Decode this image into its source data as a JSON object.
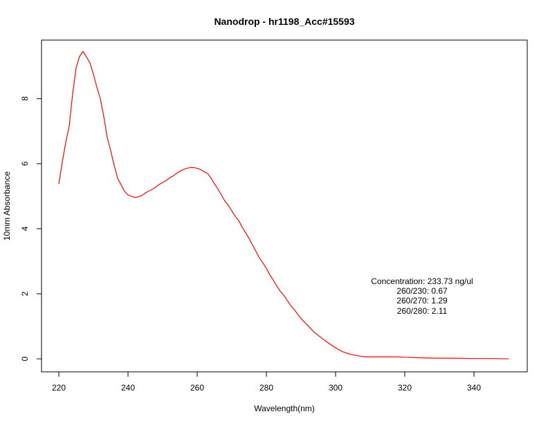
{
  "chart_data": {
    "type": "line",
    "title": "Nanodrop - hr1198_Acc#15593",
    "xlabel": "Wavelength(nm)",
    "ylabel": "10mm Absorbance",
    "xlim": [
      220,
      350
    ],
    "ylim": [
      -0.4,
      9.8
    ],
    "xticks": [
      220,
      240,
      260,
      280,
      300,
      320,
      340
    ],
    "yticks": [
      0,
      2,
      4,
      6,
      8
    ],
    "grid": false,
    "series": [
      {
        "color": "#ff0000",
        "x": [
          220,
          221,
          222,
          223,
          224,
          225,
          226,
          227,
          228,
          229,
          230,
          231,
          232,
          233,
          234,
          235,
          236,
          237,
          238,
          239,
          240,
          241,
          242,
          243,
          244,
          245,
          246,
          247,
          248,
          249,
          250,
          251,
          252,
          253,
          254,
          255,
          256,
          257,
          258,
          259,
          260,
          261,
          262,
          263,
          264,
          265,
          266,
          267,
          268,
          269,
          270,
          271,
          272,
          273,
          274,
          275,
          276,
          277,
          278,
          279,
          280,
          281,
          282,
          283,
          284,
          285,
          286,
          287,
          288,
          289,
          290,
          292,
          294,
          296,
          298,
          300,
          302,
          304,
          306,
          308,
          310,
          312,
          314,
          316,
          318,
          320,
          325,
          330,
          335,
          340,
          345,
          350
        ],
        "y": [
          5.38,
          6.05,
          6.65,
          7.15,
          8.15,
          8.95,
          9.3,
          9.45,
          9.28,
          9.1,
          8.75,
          8.35,
          8.0,
          7.45,
          6.8,
          6.4,
          5.95,
          5.55,
          5.35,
          5.15,
          5.04,
          5.0,
          4.96,
          4.98,
          5.02,
          5.1,
          5.16,
          5.21,
          5.28,
          5.36,
          5.42,
          5.48,
          5.56,
          5.62,
          5.7,
          5.77,
          5.82,
          5.86,
          5.88,
          5.88,
          5.86,
          5.82,
          5.75,
          5.7,
          5.56,
          5.38,
          5.22,
          5.04,
          4.85,
          4.72,
          4.55,
          4.38,
          4.25,
          4.05,
          3.88,
          3.7,
          3.5,
          3.3,
          3.1,
          2.95,
          2.78,
          2.58,
          2.42,
          2.24,
          2.08,
          1.96,
          1.8,
          1.64,
          1.52,
          1.38,
          1.24,
          1.02,
          0.8,
          0.64,
          0.48,
          0.34,
          0.22,
          0.15,
          0.1,
          0.07,
          0.06,
          0.06,
          0.06,
          0.06,
          0.06,
          0.05,
          0.03,
          0.02,
          0.02,
          0.01,
          0.01,
          0.0
        ]
      }
    ],
    "annotations": [
      "Concentration: 233.73 ng/ul",
      "260/230: 0.67",
      "260/270: 1.29",
      "260/280: 2.11"
    ]
  },
  "colors": {
    "line": "#ff0000",
    "axis": "#000000",
    "background": "#ffffff"
  }
}
